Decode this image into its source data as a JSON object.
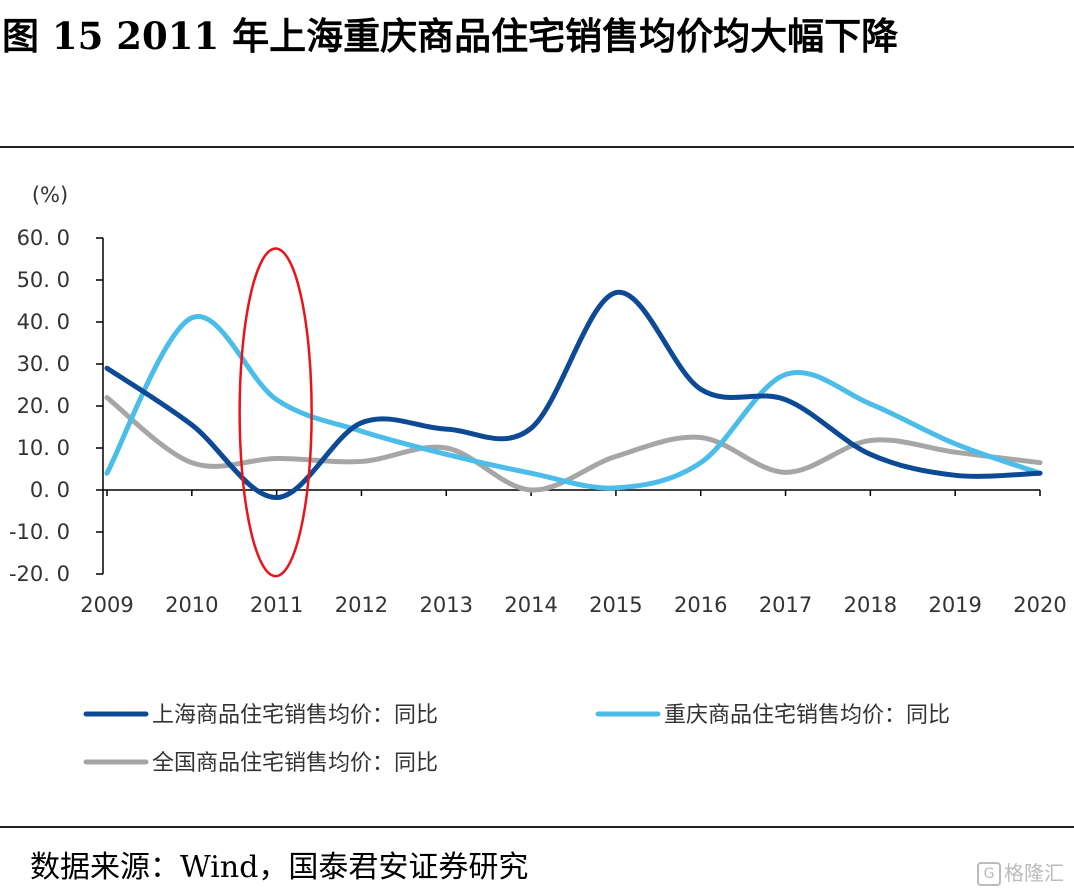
{
  "figure_title": "图 15 2011 年上海重庆商品住宅销售均价均大幅下降",
  "source_note": "数据来源：Wind，国泰君安证券研究",
  "watermark": "格隆汇",
  "chart_data": {
    "type": "line",
    "title": "",
    "ylabel": "(%)",
    "xlabel": "",
    "x": [
      "2009",
      "2010",
      "2011",
      "2012",
      "2013",
      "2014",
      "2015",
      "2016",
      "2017",
      "2018",
      "2019",
      "2020"
    ],
    "ylim": [
      -20,
      60
    ],
    "yticks": [
      "60. 0",
      "50. 0",
      "40. 0",
      "30. 0",
      "20. 0",
      "10. 0",
      "0. 0",
      "-10. 0",
      "-20. 0"
    ],
    "ytick_values": [
      60,
      50,
      40,
      30,
      20,
      10,
      0,
      -10,
      -20
    ],
    "legend_placement": "bottom",
    "series": [
      {
        "name": "上海商品住宅销售均价：同比",
        "color": "#0d4a96",
        "values": [
          29,
          15.5,
          -1.8,
          16,
          14.5,
          14.7,
          47,
          24,
          21.5,
          8.5,
          3.5,
          4
        ]
      },
      {
        "name": "重庆商品住宅销售均价：同比",
        "color": "#4cbde9",
        "values": [
          4,
          41,
          21.5,
          14,
          8.5,
          4,
          0.5,
          6.5,
          27.5,
          20.5,
          11,
          4
        ]
      },
      {
        "name": "全国商品住宅销售均价：同比",
        "color": "#a6a6a6",
        "values": [
          22,
          6.5,
          7.5,
          6.8,
          10,
          0,
          8,
          12.5,
          4.2,
          11.8,
          9,
          6.5
        ]
      }
    ],
    "annotation": {
      "type": "ellipse",
      "x": "2011",
      "y_range": [
        -20.5,
        57.5
      ],
      "color": "#e8141c"
    }
  }
}
